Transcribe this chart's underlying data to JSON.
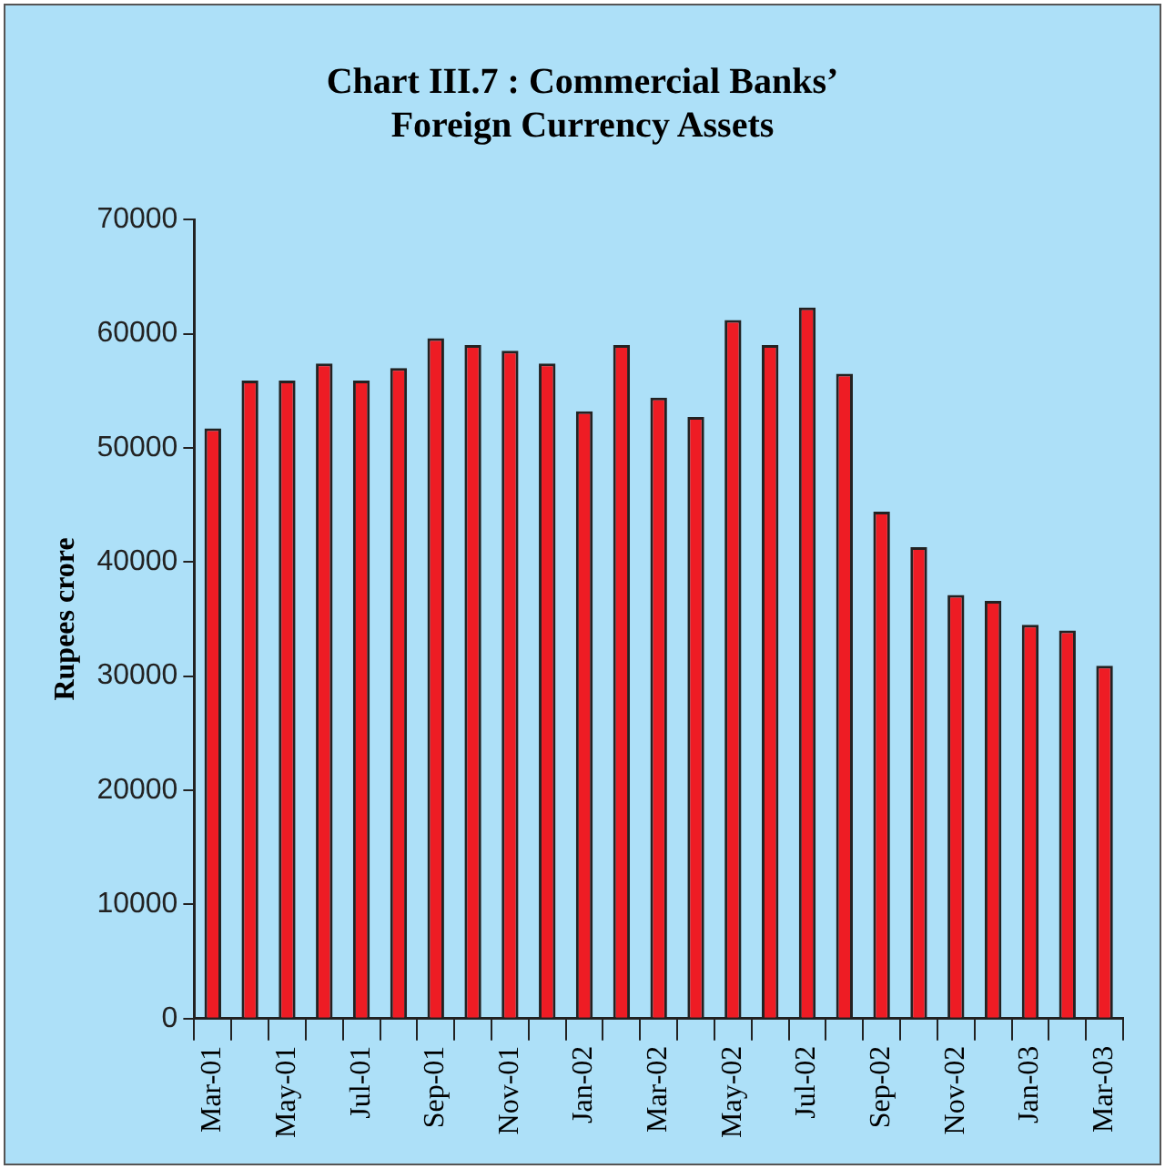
{
  "chart_data": {
    "type": "bar",
    "title": "Chart III.7 : Commercial Banks’ Foreign Currency Assets",
    "ylabel": "Rupees crore",
    "categories": [
      "Mar-01",
      null,
      "May-01",
      null,
      "Jul-01",
      null,
      "Sep-01",
      null,
      "Nov-01",
      null,
      "Jan-02",
      null,
      "Mar-02",
      null,
      "May-02",
      null,
      "Jul-02",
      null,
      "Sep-02",
      null,
      "Nov-02",
      null,
      "Jan-03",
      null,
      "Mar-03"
    ],
    "values": [
      51700,
      55900,
      55900,
      57400,
      55900,
      57000,
      59600,
      59000,
      58500,
      57400,
      53200,
      59000,
      54400,
      52700,
      61200,
      59000,
      62300,
      56500,
      44400,
      41300,
      37100,
      36600,
      34500,
      34000,
      30900
    ],
    "color": "#ee1c24",
    "ylim": [
      0,
      70000
    ],
    "yticks": [
      0,
      10000,
      20000,
      30000,
      40000,
      50000,
      60000,
      70000
    ],
    "grid": false,
    "legend": false
  }
}
